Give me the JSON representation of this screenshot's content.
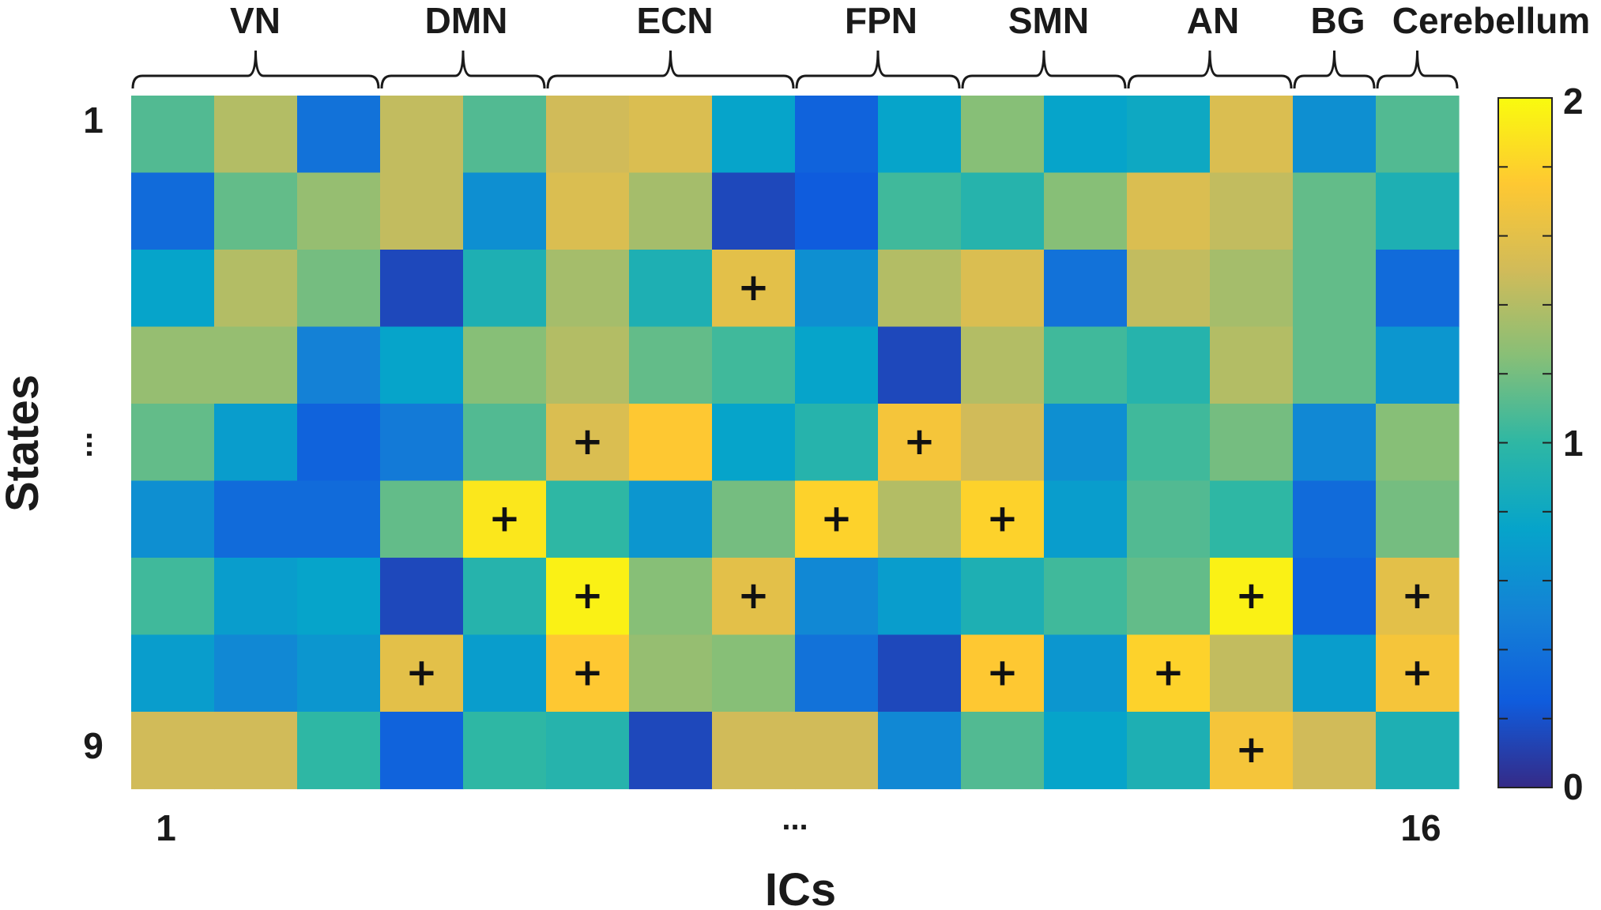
{
  "chart_data": {
    "type": "heatmap",
    "xlabel": "ICs",
    "ylabel": "States",
    "x_tick_labels": [
      "1",
      "...",
      "16"
    ],
    "y_tick_labels": [
      "1",
      "...",
      "9"
    ],
    "colorbar": {
      "min": 0,
      "max": 2,
      "tick_labels": [
        "0",
        "1",
        "2"
      ],
      "colormap": "parula"
    },
    "groups": [
      {
        "label": "VN",
        "from": 1,
        "to": 3
      },
      {
        "label": "DMN",
        "from": 4,
        "to": 5
      },
      {
        "label": "ECN",
        "from": 6,
        "to": 8
      },
      {
        "label": "FPN",
        "from": 9,
        "to": 10
      },
      {
        "label": "SMN",
        "from": 11,
        "to": 12
      },
      {
        "label": "AN",
        "from": 13,
        "to": 14
      },
      {
        "label": "BG",
        "from": 15,
        "to": 15
      },
      {
        "label": "Cerebellum",
        "from": 16,
        "to": 16
      }
    ],
    "marker_symbol": "+",
    "values": [
      [
        1.1,
        1.4,
        0.4,
        1.45,
        1.1,
        1.5,
        1.55,
        0.75,
        0.3,
        0.75,
        1.25,
        0.75,
        0.8,
        1.55,
        0.6,
        1.1
      ],
      [
        0.35,
        1.15,
        1.3,
        1.45,
        0.6,
        1.55,
        1.35,
        0.15,
        0.25,
        1.05,
        0.95,
        1.25,
        1.55,
        1.45,
        1.15,
        0.9
      ],
      [
        0.75,
        1.4,
        1.2,
        0.15,
        0.9,
        1.35,
        0.9,
        1.6,
        0.6,
        1.4,
        1.55,
        0.4,
        1.45,
        1.35,
        1.15,
        0.35
      ],
      [
        1.3,
        1.3,
        0.5,
        0.75,
        1.25,
        1.4,
        1.15,
        1.05,
        0.75,
        0.15,
        1.4,
        1.05,
        0.95,
        1.4,
        1.15,
        0.65
      ],
      [
        1.15,
        0.7,
        0.3,
        0.45,
        1.1,
        1.55,
        1.75,
        0.75,
        0.95,
        1.7,
        1.5,
        0.6,
        1.05,
        1.2,
        0.55,
        1.25
      ],
      [
        0.6,
        0.35,
        0.35,
        1.15,
        1.9,
        1.0,
        0.65,
        1.2,
        1.8,
        1.4,
        1.8,
        0.7,
        1.1,
        1.0,
        0.35,
        1.2
      ],
      [
        1.05,
        0.7,
        0.75,
        0.15,
        0.95,
        1.95,
        1.25,
        1.6,
        0.55,
        0.7,
        0.9,
        1.05,
        1.15,
        1.95,
        0.3,
        1.6
      ],
      [
        0.7,
        0.55,
        0.65,
        1.6,
        0.7,
        1.75,
        1.3,
        1.25,
        0.4,
        0.15,
        1.75,
        0.65,
        1.8,
        1.45,
        0.7,
        1.7
      ],
      [
        1.5,
        1.5,
        1.0,
        0.3,
        1.0,
        0.95,
        0.15,
        1.5,
        1.5,
        0.55,
        1.1,
        0.75,
        0.9,
        1.7,
        1.5,
        0.9
      ]
    ],
    "markers": [
      [
        3,
        8
      ],
      [
        5,
        6
      ],
      [
        5,
        10
      ],
      [
        6,
        5
      ],
      [
        6,
        9
      ],
      [
        6,
        11
      ],
      [
        7,
        6
      ],
      [
        7,
        8
      ],
      [
        7,
        14
      ],
      [
        7,
        16
      ],
      [
        8,
        4
      ],
      [
        8,
        6
      ],
      [
        8,
        11
      ],
      [
        8,
        13
      ],
      [
        8,
        16
      ],
      [
        9,
        14
      ]
    ]
  }
}
